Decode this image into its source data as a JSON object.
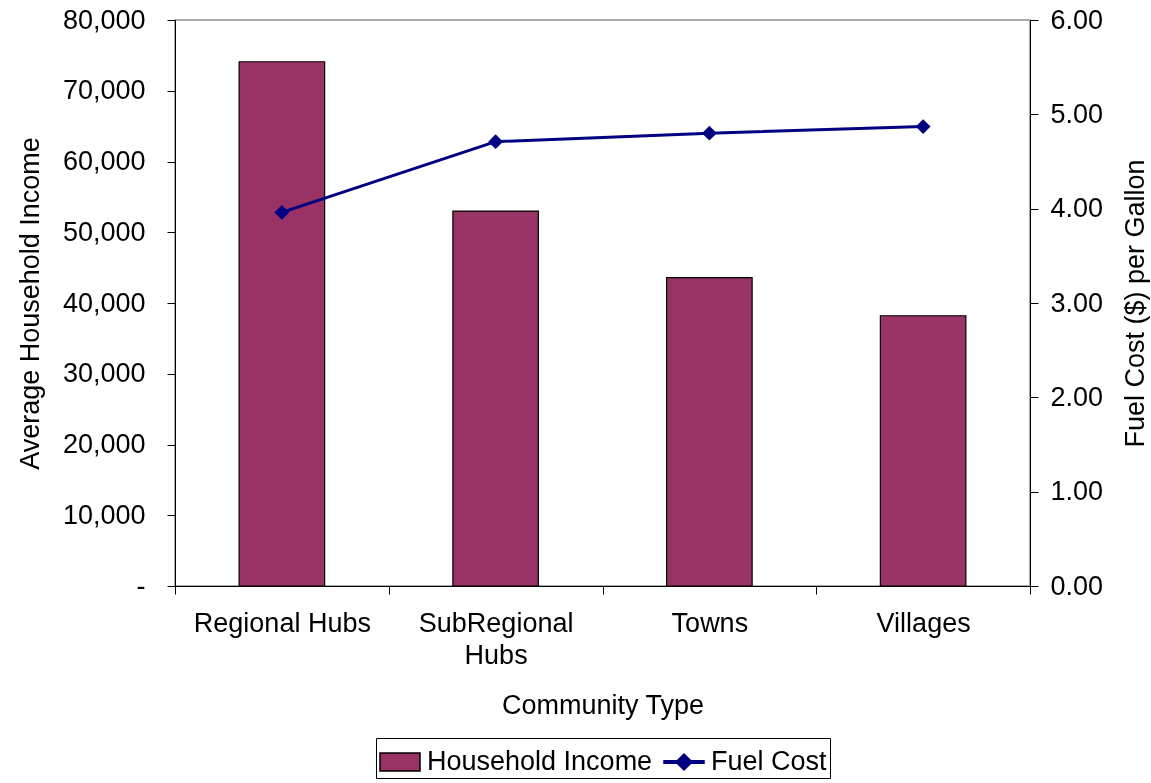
{
  "chart_data": {
    "type": "bar",
    "xlabel": "Community Type",
    "ylabel": "Average Household Income",
    "y2label": "Fuel Cost ($) per Gallon",
    "categories": [
      "Regional Hubs",
      "SubRegional Hubs",
      "Towns",
      "Villages"
    ],
    "series": [
      {
        "name": "Household Income",
        "color": "#993366",
        "values": [
          74100,
          53000,
          43600,
          38200
        ]
      },
      {
        "name": "Fuel Cost",
        "type": "line",
        "axis": "y2",
        "color": "#000080",
        "marker": "diamond",
        "values": [
          3.96,
          4.71,
          4.8,
          4.87
        ]
      }
    ],
    "ylim": [
      0,
      80000
    ],
    "yticks": [
      {
        "value": 0,
        "label": "-"
      },
      {
        "value": 10000,
        "label": "10,000"
      },
      {
        "value": 20000,
        "label": "20,000"
      },
      {
        "value": 30000,
        "label": "30,000"
      },
      {
        "value": 40000,
        "label": "40,000"
      },
      {
        "value": 50000,
        "label": "50,000"
      },
      {
        "value": 60000,
        "label": "60,000"
      },
      {
        "value": 70000,
        "label": "70,000"
      },
      {
        "value": 80000,
        "label": "80,000"
      }
    ],
    "y2lim": [
      0,
      6
    ],
    "y2ticks": [
      {
        "value": 0,
        "label": "0.00"
      },
      {
        "value": 1,
        "label": "1.00"
      },
      {
        "value": 2,
        "label": "2.00"
      },
      {
        "value": 3,
        "label": "3.00"
      },
      {
        "value": 4,
        "label": "4.00"
      },
      {
        "value": 5,
        "label": "5.00"
      },
      {
        "value": 6,
        "label": "6.00"
      }
    ],
    "grid": false,
    "legend": "bottom"
  }
}
